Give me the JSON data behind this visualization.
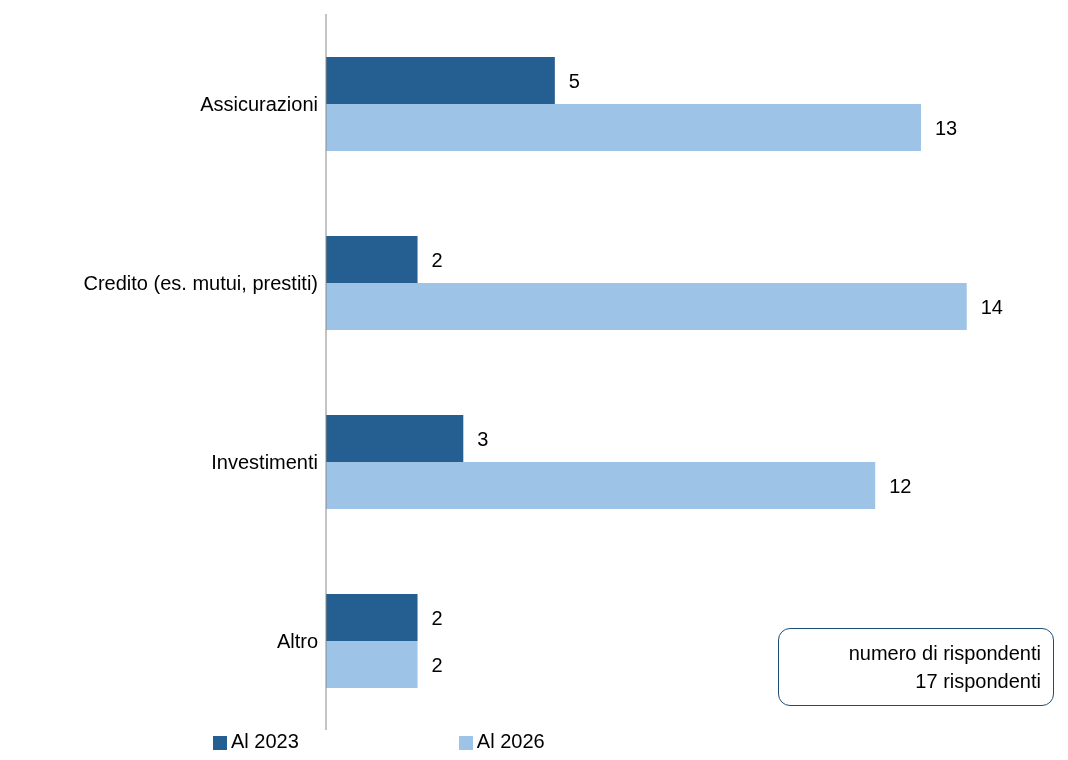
{
  "chart_data": {
    "type": "bar",
    "orientation": "horizontal",
    "categories": [
      "Assicurazioni",
      "Credito (es. mutui, prestiti)",
      "Investimenti",
      "Altro"
    ],
    "series": [
      {
        "name": "Al 2023",
        "color": "#255e91",
        "values": [
          5,
          2,
          3,
          2
        ]
      },
      {
        "name": "Al 2026",
        "color": "#9dc3e6",
        "values": [
          13,
          14,
          12,
          2
        ]
      }
    ],
    "data_labels": true,
    "tick_labels": "y",
    "grid": false,
    "legend": "bottom",
    "annotations": [
      "numero di rispondenti",
      "17 rispondenti"
    ]
  }
}
